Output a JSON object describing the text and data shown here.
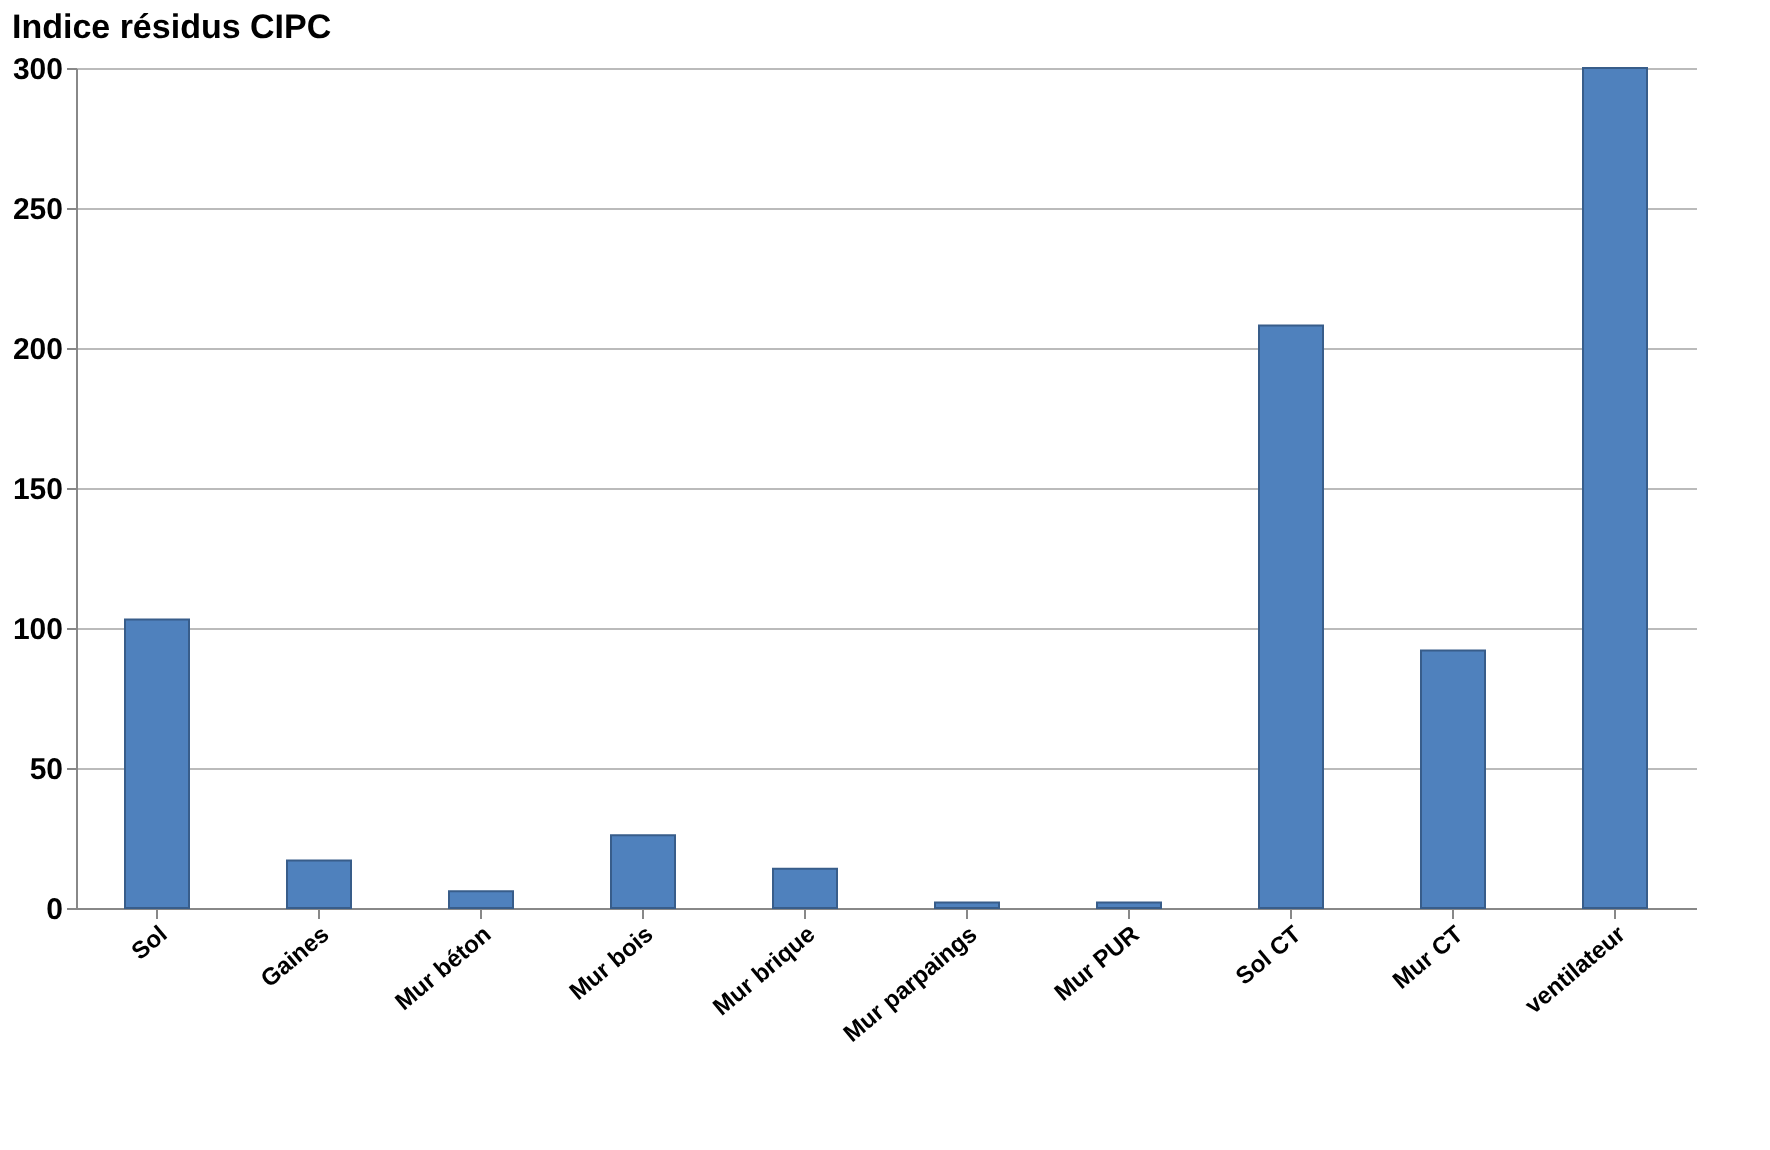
{
  "chart_data": {
    "type": "bar",
    "title": "Indice résidus CIPC",
    "categories": [
      "Sol",
      "Gaines",
      "Mur béton",
      "Mur bois",
      "Mur brique",
      "Mur parpaings",
      "Mur PUR",
      "Sol CT",
      "Mur CT",
      "ventilateur"
    ],
    "values": [
      103,
      17,
      6,
      26,
      14,
      2,
      2,
      208,
      92,
      300
    ],
    "color": "#4f81bd",
    "ylim": [
      0,
      300
    ],
    "yticks": [
      0,
      50,
      100,
      150,
      200,
      250,
      300
    ],
    "grid": "y"
  }
}
